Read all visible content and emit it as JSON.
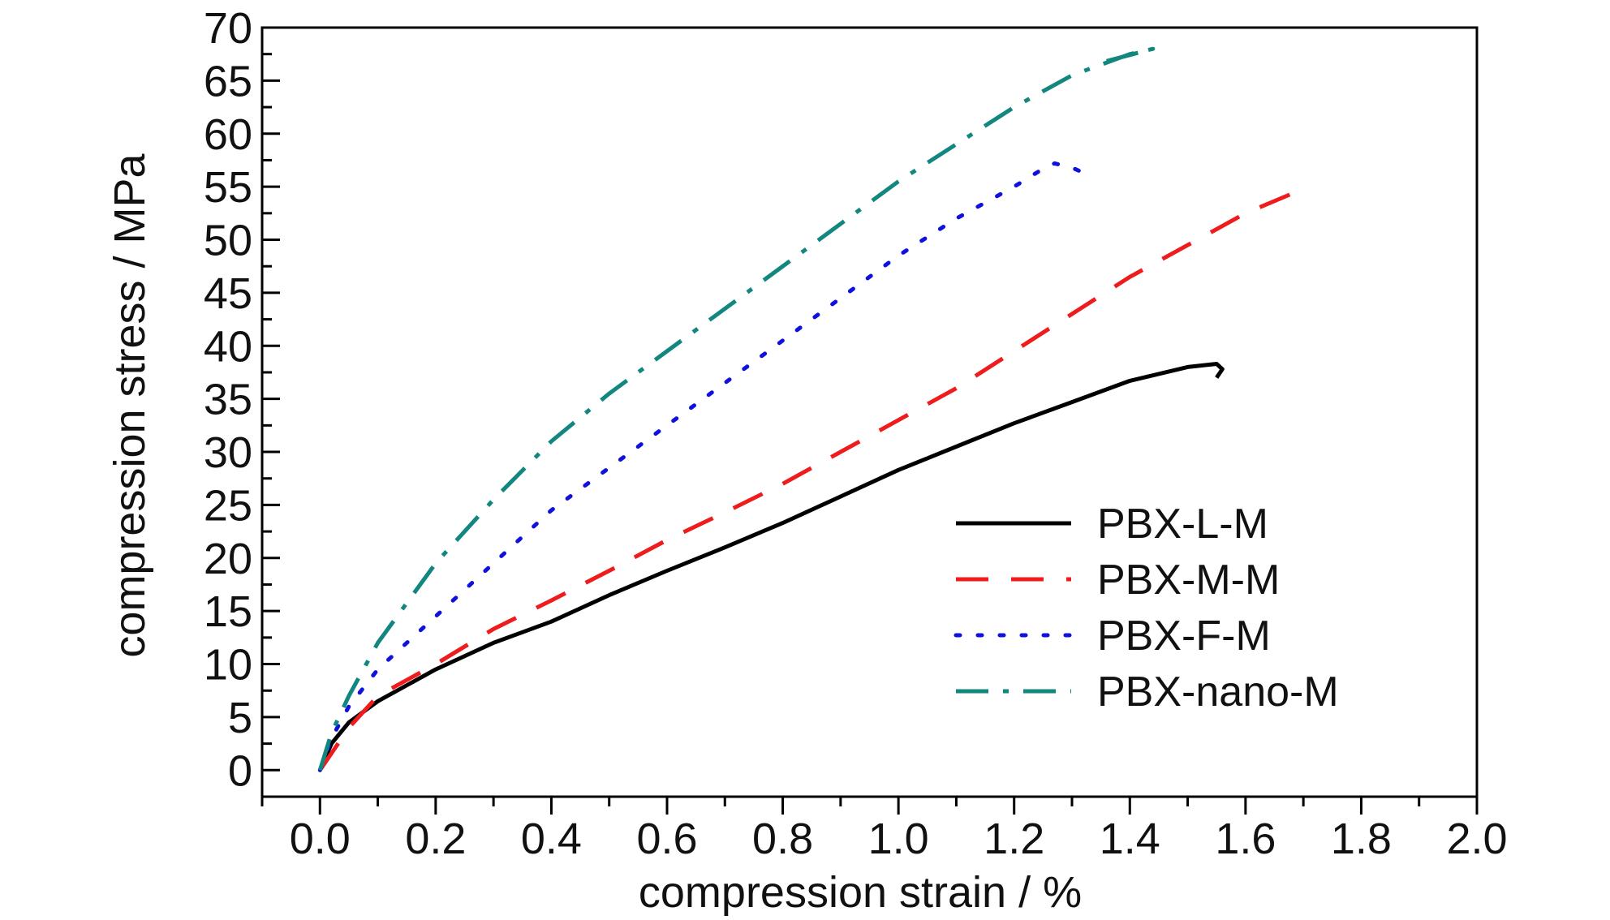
{
  "chart_data": {
    "type": "line",
    "xlabel": "compression strain / %",
    "ylabel": "compression stress / MPa",
    "xlim": [
      -0.1,
      2.0
    ],
    "ylim": [
      -2.5,
      70
    ],
    "xticks": [
      "0.0",
      "0.2",
      "0.4",
      "0.6",
      "0.8",
      "1.0",
      "1.2",
      "1.4",
      "1.6",
      "1.8",
      "2.0"
    ],
    "yticks": [
      "0",
      "5",
      "10",
      "15",
      "20",
      "25",
      "30",
      "35",
      "40",
      "45",
      "50",
      "55",
      "60",
      "65",
      "70"
    ],
    "grid": false,
    "legend_position": "lower-right",
    "series": [
      {
        "name": "PBX-L-M",
        "color": "#000000",
        "style": "solid",
        "x": [
          0.0,
          0.02,
          0.05,
          0.1,
          0.2,
          0.3,
          0.4,
          0.5,
          0.6,
          0.7,
          0.8,
          0.9,
          1.0,
          1.1,
          1.2,
          1.3,
          1.4,
          1.5,
          1.55,
          1.56,
          1.55
        ],
        "y": [
          0,
          2.5,
          4.5,
          6.5,
          9.5,
          12.0,
          14.0,
          16.5,
          18.8,
          21.0,
          23.3,
          25.8,
          28.3,
          30.5,
          32.7,
          34.7,
          36.7,
          38.0,
          38.3,
          37.8,
          37.0
        ]
      },
      {
        "name": "PBX-M-M",
        "color": "#ee1c1c",
        "style": "dashed",
        "x": [
          0.0,
          0.05,
          0.1,
          0.2,
          0.3,
          0.4,
          0.5,
          0.6,
          0.7,
          0.8,
          0.9,
          1.0,
          1.1,
          1.2,
          1.3,
          1.4,
          1.5,
          1.6,
          1.7
        ],
        "y": [
          0,
          4.0,
          7.0,
          10.0,
          13.3,
          16.0,
          18.8,
          21.7,
          24.3,
          27.0,
          30.0,
          33.0,
          36.0,
          39.5,
          43.0,
          46.5,
          49.5,
          52.5,
          54.8
        ]
      },
      {
        "name": "PBX-F-M",
        "color": "#1111dd",
        "style": "dotted",
        "x": [
          0.0,
          0.02,
          0.05,
          0.1,
          0.2,
          0.3,
          0.4,
          0.5,
          0.6,
          0.7,
          0.8,
          0.9,
          1.0,
          1.1,
          1.2,
          1.25,
          1.27,
          1.3,
          1.32
        ],
        "y": [
          0,
          3.0,
          6.0,
          9.5,
          14.5,
          19.5,
          24.5,
          28.5,
          32.5,
          36.5,
          40.5,
          44.5,
          48.5,
          52.0,
          55.0,
          56.7,
          57.2,
          56.8,
          56.3
        ]
      },
      {
        "name": "PBX-nano-M",
        "color": "#12877f",
        "style": "dashdot",
        "x": [
          0.0,
          0.02,
          0.05,
          0.1,
          0.2,
          0.3,
          0.4,
          0.5,
          0.6,
          0.7,
          0.8,
          0.9,
          1.0,
          1.1,
          1.2,
          1.3,
          1.4,
          1.44,
          1.35
        ],
        "y": [
          0,
          3.5,
          7.0,
          12.0,
          19.5,
          25.5,
          31.0,
          35.5,
          39.5,
          43.5,
          47.5,
          51.5,
          55.5,
          59.0,
          62.5,
          65.5,
          67.5,
          68.0,
          66.7
        ]
      }
    ]
  }
}
